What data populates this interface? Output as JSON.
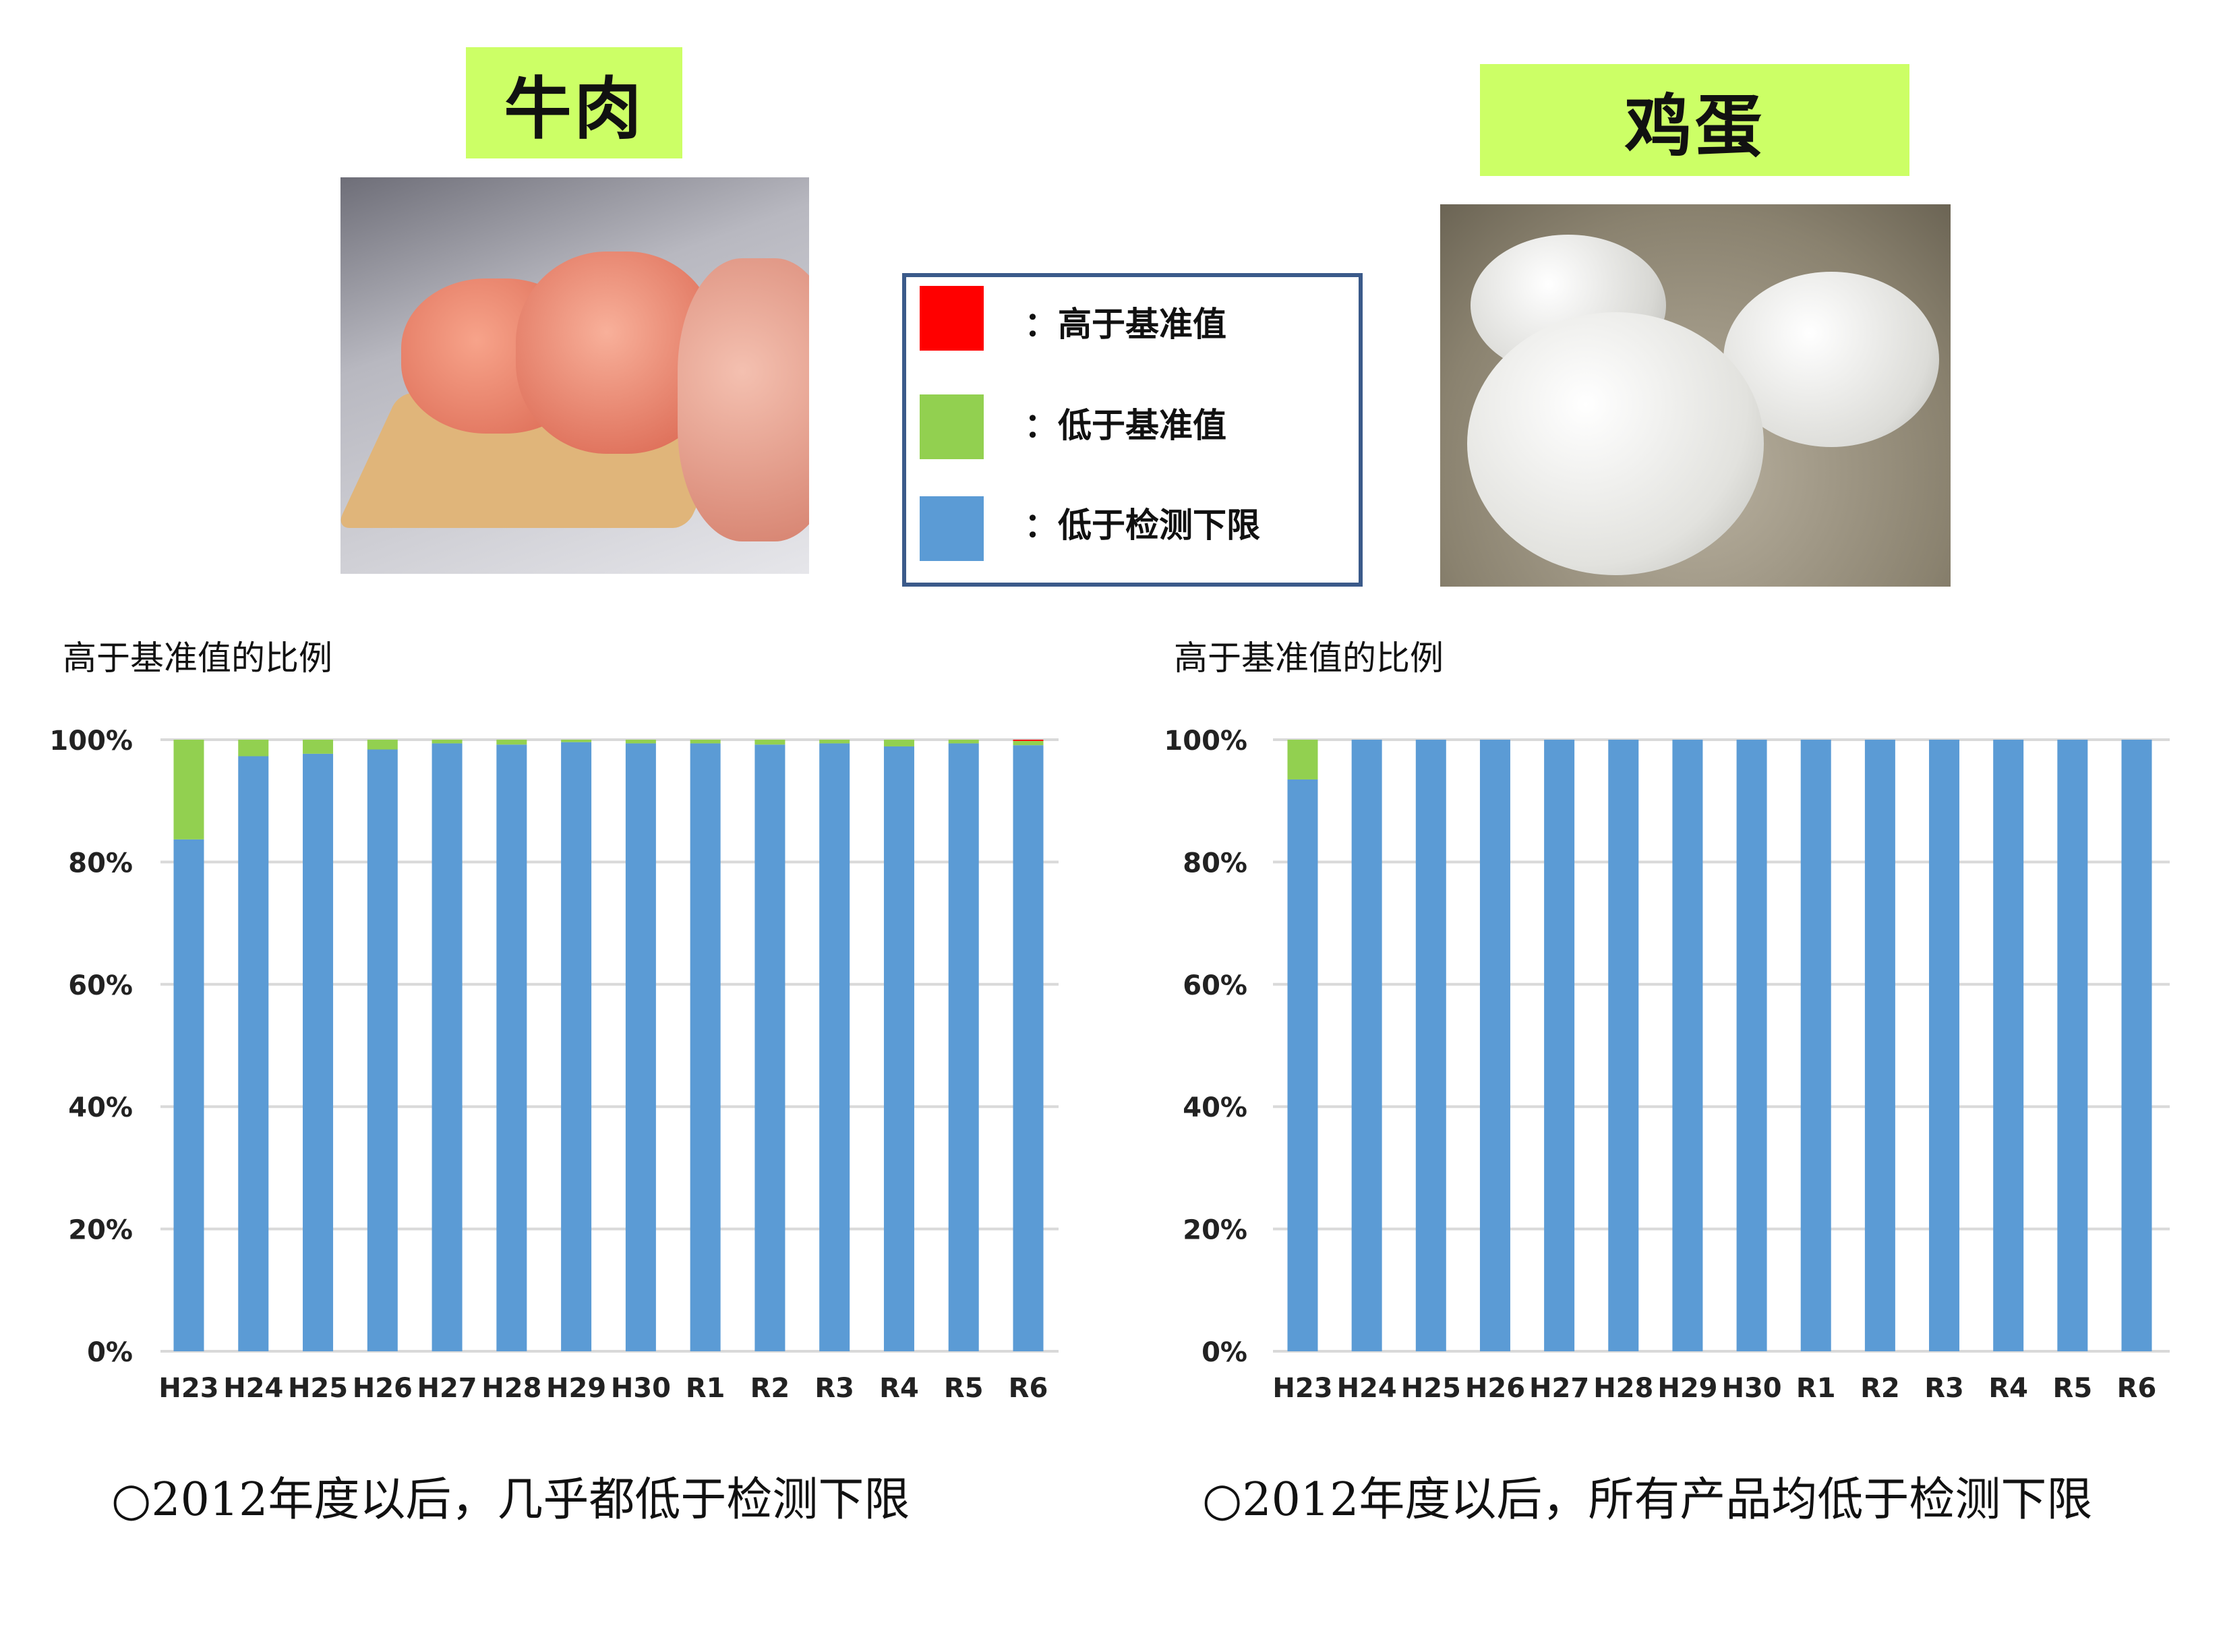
{
  "beef_panel": {
    "title": "牛肉",
    "photo": "marbled-beef-photo"
  },
  "egg_panel": {
    "title": "鸡蛋",
    "photo": "eggs-photo"
  },
  "legend": {
    "items": [
      {
        "label": "：高于基准值",
        "color": "#ff0000"
      },
      {
        "label": "：低于基准值",
        "color": "#92d050"
      },
      {
        "label": "：低于检测下限",
        "color": "#5b9bd5"
      }
    ]
  },
  "captions": {
    "beef": "○2012年度以后，几乎都低于检测下限",
    "egg": "○2012年度以后，所有产品均低于检测下限"
  },
  "chart_data": [
    {
      "type": "bar",
      "stacked": true,
      "title": "高于基准值的比例",
      "categories": [
        "H23",
        "H24",
        "H25",
        "H26",
        "H27",
        "H28",
        "H29",
        "H30",
        "R1",
        "R2",
        "R3",
        "R4",
        "R5",
        "R6"
      ],
      "ylim": [
        0,
        100
      ],
      "yticks": [
        "0%",
        "20%",
        "40%",
        "60%",
        "80%",
        "100%"
      ],
      "grid": true,
      "series": [
        {
          "name": "低于检测下限",
          "color": "#5b9bd5",
          "values": [
            83.7,
            97.3,
            97.7,
            98.4,
            99.4,
            99.2,
            99.6,
            99.4,
            99.4,
            99.2,
            99.4,
            98.9,
            99.4,
            99.1
          ]
        },
        {
          "name": "低于基准值",
          "color": "#92d050",
          "values": [
            16.3,
            2.7,
            2.3,
            1.6,
            0.6,
            0.8,
            0.4,
            0.6,
            0.6,
            0.8,
            0.6,
            1.1,
            0.6,
            0.7
          ]
        },
        {
          "name": "高于基准值",
          "color": "#ff0000",
          "values": [
            0,
            0,
            0,
            0,
            0,
            0,
            0,
            0,
            0,
            0,
            0,
            0,
            0,
            0.2
          ]
        }
      ]
    },
    {
      "type": "bar",
      "stacked": true,
      "title": "高于基准值的比例",
      "categories": [
        "H23",
        "H24",
        "H25",
        "H26",
        "H27",
        "H28",
        "H29",
        "H30",
        "R1",
        "R2",
        "R3",
        "R4",
        "R5",
        "R6"
      ],
      "ylim": [
        0,
        100
      ],
      "yticks": [
        "0%",
        "20%",
        "40%",
        "60%",
        "80%",
        "100%"
      ],
      "grid": true,
      "series": [
        {
          "name": "低于检测下限",
          "color": "#5b9bd5",
          "values": [
            93.5,
            100,
            100,
            100,
            100,
            100,
            100,
            100,
            100,
            100,
            100,
            100,
            100,
            100
          ]
        },
        {
          "name": "低于基准值",
          "color": "#92d050",
          "values": [
            6.5,
            0,
            0,
            0,
            0,
            0,
            0,
            0,
            0,
            0,
            0,
            0,
            0,
            0
          ]
        },
        {
          "name": "高于基准值",
          "color": "#ff0000",
          "values": [
            0,
            0,
            0,
            0,
            0,
            0,
            0,
            0,
            0,
            0,
            0,
            0,
            0,
            0
          ]
        }
      ]
    }
  ]
}
